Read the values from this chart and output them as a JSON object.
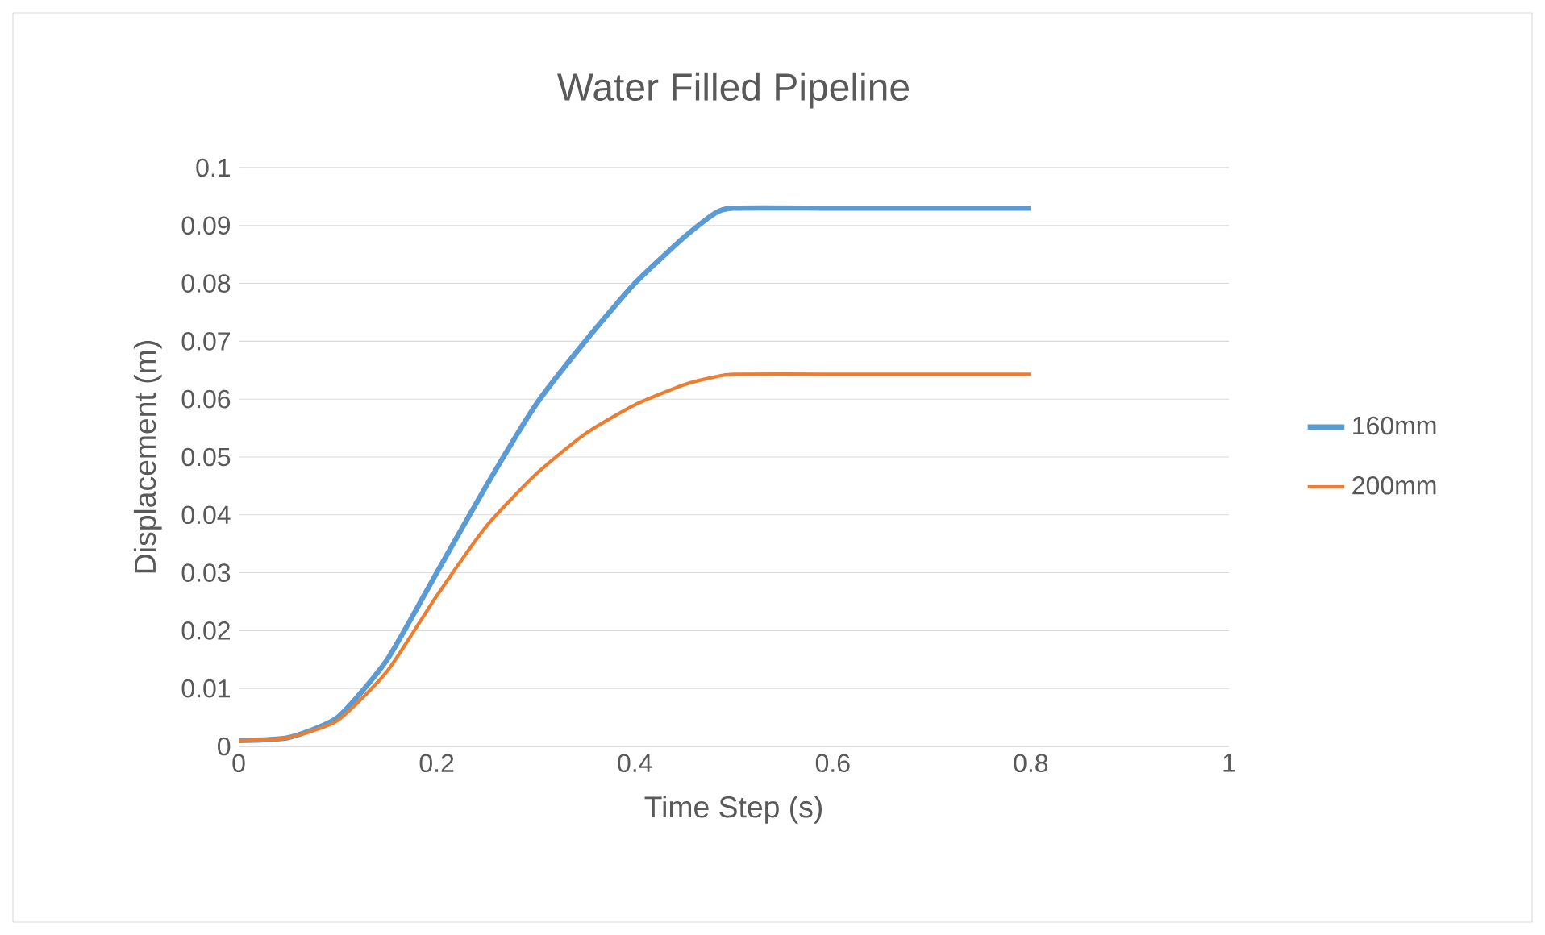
{
  "chart_data": {
    "type": "line",
    "title": "Water Filled Pipeline",
    "xlabel": "Time Step (s)",
    "ylabel": "Displacement (m)",
    "x": [
      0,
      0.05,
      0.1,
      0.15,
      0.2,
      0.25,
      0.3,
      0.35,
      0.4,
      0.45,
      0.48,
      0.5,
      0.6,
      0.7,
      0.8
    ],
    "series": [
      {
        "name": "160mm",
        "color": "#5b9bd5",
        "values": [
          0.001,
          0.0015,
          0.005,
          0.015,
          0.03,
          0.045,
          0.059,
          0.07,
          0.08,
          0.088,
          0.092,
          0.093,
          0.093,
          0.093,
          0.093
        ]
      },
      {
        "name": "200mm",
        "color": "#ed7d31",
        "values": [
          0.001,
          0.0015,
          0.0045,
          0.013,
          0.026,
          0.038,
          0.047,
          0.054,
          0.059,
          0.0625,
          0.0638,
          0.0643,
          0.0643,
          0.0643,
          0.0643
        ]
      }
    ],
    "xlim": [
      0,
      1
    ],
    "xticks": [
      0,
      0.2,
      0.4,
      0.6,
      0.8,
      1
    ],
    "ylim": [
      0,
      0.1
    ],
    "yticks": [
      0,
      0.01,
      0.02,
      0.03,
      0.04,
      0.05,
      0.06,
      0.07,
      0.08,
      0.09,
      0.1
    ],
    "grid": "y",
    "legend": "right",
    "marker": "none",
    "line_style": "solid"
  }
}
